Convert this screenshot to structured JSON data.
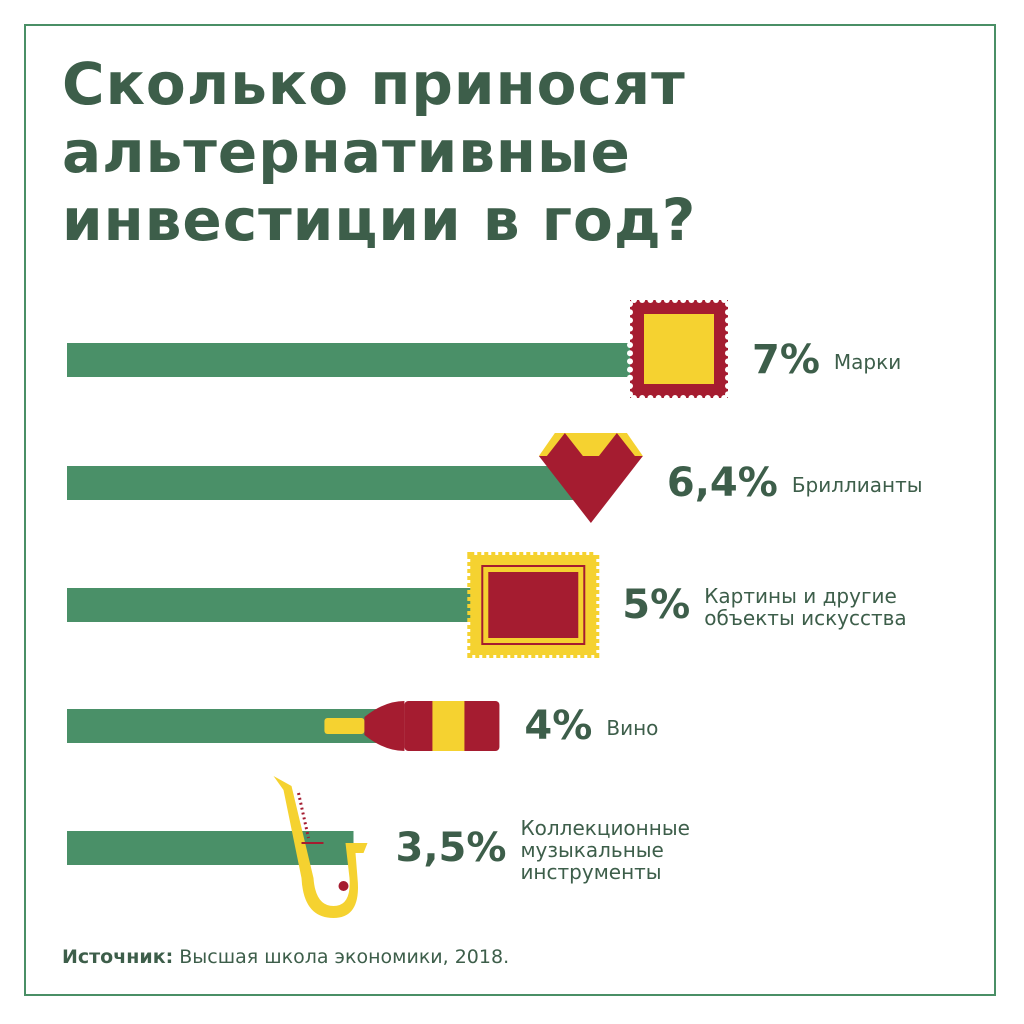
{
  "title": "Сколько приносят\nальтернативные\nинвестиции в год?",
  "chart_data": {
    "type": "bar",
    "orientation": "horizontal",
    "categories": [
      "Марки",
      "Бриллианты",
      "Картины и другие\nобъекты искусства",
      "Вино",
      "Коллекционные\nмузыкальные\nинструменты"
    ],
    "values": [
      7,
      6.4,
      5,
      4,
      3.5
    ],
    "value_labels": [
      "7%",
      "6,4%",
      "5%",
      "4%",
      "3,5%"
    ],
    "color": "#4a9068"
  },
  "source": {
    "label": "Источник:",
    "text": "Высшая школа экономики, 2018."
  }
}
